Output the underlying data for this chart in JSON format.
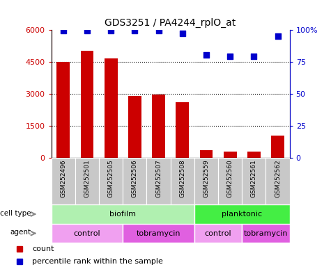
{
  "title": "GDS3251 / PA4244_rplO_at",
  "samples": [
    "GSM252496",
    "GSM252501",
    "GSM252505",
    "GSM252506",
    "GSM252507",
    "GSM252508",
    "GSM252559",
    "GSM252560",
    "GSM252561",
    "GSM252562"
  ],
  "counts": [
    4500,
    5000,
    4650,
    2900,
    2950,
    2600,
    350,
    300,
    280,
    1050
  ],
  "percentiles": [
    99,
    99,
    99,
    99,
    99,
    97,
    80,
    79,
    79,
    95
  ],
  "bar_color": "#cc0000",
  "dot_color": "#0000cc",
  "ylim_left": [
    0,
    6000
  ],
  "ylim_right": [
    0,
    100
  ],
  "yticks_left": [
    0,
    1500,
    3000,
    4500,
    6000
  ],
  "yticks_right": [
    0,
    25,
    50,
    75,
    100
  ],
  "cell_type_labels": [
    {
      "text": "biofilm",
      "start": 0,
      "end": 6,
      "color": "#b0f0b0"
    },
    {
      "text": "planktonic",
      "start": 6,
      "end": 10,
      "color": "#44ee44"
    }
  ],
  "agent_labels": [
    {
      "text": "control",
      "start": 0,
      "end": 3,
      "color": "#f0a0f0"
    },
    {
      "text": "tobramycin",
      "start": 3,
      "end": 6,
      "color": "#e060e0"
    },
    {
      "text": "control",
      "start": 6,
      "end": 8,
      "color": "#f0a0f0"
    },
    {
      "text": "tobramycin",
      "start": 8,
      "end": 10,
      "color": "#e060e0"
    }
  ],
  "legend_count_color": "#cc0000",
  "legend_pct_color": "#0000cc",
  "sample_bg_color": "#c8c8c8",
  "left_label_color": "#888888"
}
